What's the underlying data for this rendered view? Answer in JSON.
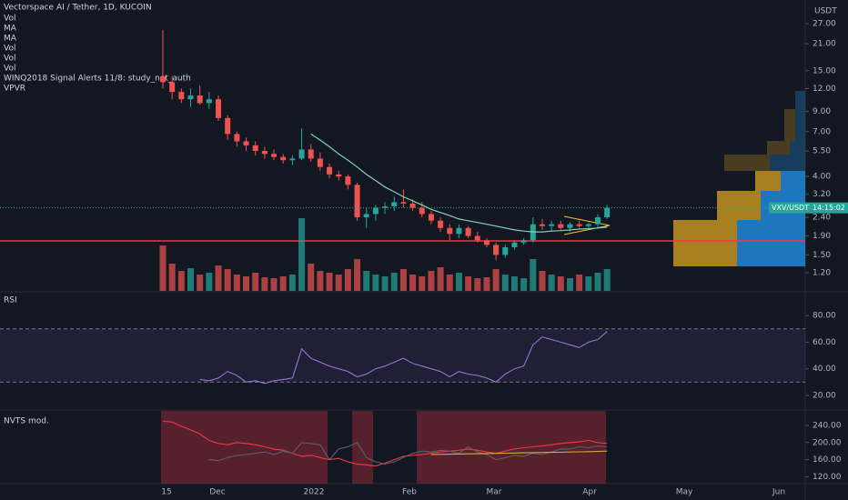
{
  "title": "Vectorspace AI / Tether, 1D, KUCOIN",
  "legend": [
    "Vol",
    "MA",
    "MA",
    "Vol",
    "Vol",
    "Vol",
    "WINQ2018 Signal Alerts 11/8: study_not_auth",
    "VPVR"
  ],
  "unit": "USDT",
  "price_label": {
    "symbol": "VXV/USDT",
    "countdown": "14:15:02"
  },
  "time_axis": [
    "15",
    "Dec",
    "2022",
    "Feb",
    "Mar",
    "Apr",
    "May",
    "Jun"
  ],
  "chart_data": [
    {
      "type": "candlestick",
      "log_scale": true,
      "ylim": [
        0.956,
        36.3
      ],
      "yticks": [
        {
          "value": 27,
          "label": "27.00"
        },
        {
          "value": 21,
          "label": "21.00"
        },
        {
          "value": 15,
          "label": "15.00"
        },
        {
          "value": 12,
          "label": "12.00"
        },
        {
          "value": 9,
          "label": "9.00"
        },
        {
          "value": 7,
          "label": "7.00"
        },
        {
          "value": 5.5,
          "label": "5.50"
        },
        {
          "value": 4,
          "label": "4.00"
        },
        {
          "value": 3.2,
          "label": "3.20"
        },
        {
          "value": 2.4,
          "label": "2.40"
        },
        {
          "value": 1.9,
          "label": "1.90"
        },
        {
          "value": 1.5,
          "label": "1.50"
        },
        {
          "value": 1.2,
          "label": "1.20"
        }
      ],
      "up_color": "#26a69a",
      "down_color": "#ef5350",
      "candles": [
        [
          14,
          25,
          12,
          13
        ],
        [
          13,
          14,
          10.5,
          11.5
        ],
        [
          11.5,
          12,
          10,
          10.5
        ],
        [
          10.5,
          12,
          9.5,
          11
        ],
        [
          11,
          12.5,
          9.8,
          10
        ],
        [
          10,
          11.5,
          9.3,
          10.5
        ],
        [
          10.5,
          11,
          8,
          8.3
        ],
        [
          8.3,
          8.6,
          6.3,
          6.8
        ],
        [
          6.8,
          7,
          5.8,
          6.2
        ],
        [
          6.2,
          6.5,
          5.5,
          5.9
        ],
        [
          5.9,
          6.2,
          5.2,
          5.5
        ],
        [
          5.5,
          5.8,
          5,
          5.3
        ],
        [
          5.3,
          5.6,
          4.9,
          5.1
        ],
        [
          5.1,
          5.3,
          4.7,
          4.9
        ],
        [
          4.9,
          5.2,
          4.6,
          5.0
        ],
        [
          5.0,
          7.3,
          4.9,
          5.6
        ],
        [
          5.6,
          6.0,
          4.8,
          5.0
        ],
        [
          5.0,
          5.4,
          4.3,
          4.5
        ],
        [
          4.5,
          4.7,
          3.9,
          4.1
        ],
        [
          4.1,
          4.3,
          3.8,
          4.0
        ],
        [
          4.0,
          4.1,
          3.4,
          3.6
        ],
        [
          3.6,
          3.7,
          2.3,
          2.4
        ],
        [
          2.4,
          2.7,
          2.1,
          2.5
        ],
        [
          2.5,
          2.8,
          2.3,
          2.7
        ],
        [
          2.7,
          2.9,
          2.5,
          2.75
        ],
        [
          2.75,
          3.1,
          2.6,
          2.9
        ],
        [
          2.9,
          3.4,
          2.7,
          2.85
        ],
        [
          2.85,
          3.0,
          2.6,
          2.7
        ],
        [
          2.7,
          2.9,
          2.4,
          2.5
        ],
        [
          2.5,
          2.6,
          2.2,
          2.3
        ],
        [
          2.3,
          2.4,
          2.0,
          2.1
        ],
        [
          2.1,
          2.2,
          1.8,
          1.95
        ],
        [
          1.95,
          2.2,
          1.85,
          2.1
        ],
        [
          2.1,
          2.15,
          1.85,
          1.9
        ],
        [
          1.9,
          2.0,
          1.75,
          1.8
        ],
        [
          1.8,
          1.85,
          1.65,
          1.7
        ],
        [
          1.7,
          1.75,
          1.4,
          1.5
        ],
        [
          1.5,
          1.7,
          1.45,
          1.65
        ],
        [
          1.65,
          1.8,
          1.6,
          1.75
        ],
        [
          1.75,
          1.85,
          1.7,
          1.8
        ],
        [
          1.8,
          2.4,
          1.75,
          2.2
        ],
        [
          2.2,
          2.35,
          2.05,
          2.15
        ],
        [
          2.15,
          2.3,
          2.0,
          2.2
        ],
        [
          2.2,
          2.3,
          2.05,
          2.1
        ],
        [
          2.1,
          2.25,
          2.0,
          2.2
        ],
        [
          2.2,
          2.3,
          2.1,
          2.15
        ],
        [
          2.15,
          2.25,
          2.05,
          2.2
        ],
        [
          2.2,
          2.5,
          2.1,
          2.4
        ],
        [
          2.4,
          2.8,
          2.35,
          2.7
        ]
      ],
      "ma": {
        "color": "#7ed6b0",
        "values": [
          null,
          null,
          null,
          null,
          null,
          null,
          null,
          null,
          null,
          null,
          null,
          null,
          null,
          null,
          null,
          null,
          6.8,
          6.3,
          5.8,
          5.3,
          4.9,
          4.5,
          4.1,
          3.8,
          3.5,
          3.3,
          3.1,
          2.95,
          2.8,
          2.65,
          2.55,
          2.45,
          2.35,
          2.3,
          2.25,
          2.2,
          2.15,
          2.1,
          2.05,
          2.02,
          2.0,
          2.0,
          2.02,
          2.03,
          2.05,
          2.07,
          2.08,
          2.1,
          2.12
        ]
      },
      "volume": [
        50,
        30,
        22,
        25,
        18,
        20,
        28,
        24,
        18,
        16,
        20,
        15,
        14,
        16,
        18,
        80,
        30,
        22,
        20,
        18,
        24,
        35,
        22,
        18,
        16,
        20,
        24,
        18,
        16,
        22,
        26,
        18,
        20,
        16,
        14,
        15,
        24,
        18,
        16,
        14,
        35,
        22,
        18,
        16,
        14,
        18,
        16,
        20,
        24
      ]
    },
    {
      "type": "line",
      "name": "RSI",
      "ylim": [
        9.7,
        97.2
      ],
      "band": [
        30,
        70
      ],
      "band_color": "#7e57c2",
      "yticks": [
        {
          "value": 80,
          "label": "80.00"
        },
        {
          "value": 60,
          "label": "60.00"
        },
        {
          "value": 40,
          "label": "40.00"
        },
        {
          "value": 20,
          "label": "20.00"
        }
      ],
      "series": [
        {
          "color": "#9575cd",
          "values": [
            null,
            null,
            null,
            null,
            32,
            31,
            33,
            38,
            35,
            30,
            31,
            29,
            31,
            32,
            33,
            55,
            48,
            45,
            42,
            40,
            38,
            34,
            36,
            40,
            42,
            45,
            48,
            44,
            42,
            40,
            38,
            34,
            38,
            36,
            35,
            33,
            30,
            36,
            40,
            42,
            58,
            64,
            62,
            60,
            58,
            56,
            60,
            62,
            68
          ]
        }
      ]
    },
    {
      "type": "line",
      "name": "NVTS mod.",
      "ylim": [
        104,
        274
      ],
      "yticks": [
        {
          "value": 240,
          "label": "240.00"
        },
        {
          "value": 200,
          "label": "200.00"
        },
        {
          "value": 160,
          "label": "160.00"
        },
        {
          "value": 120,
          "label": "120.00"
        }
      ],
      "series": [
        {
          "color": "#f23645",
          "values": [
            250,
            248,
            238,
            230,
            220,
            205,
            198,
            195,
            200,
            198,
            195,
            190,
            185,
            182,
            175,
            168,
            170,
            165,
            160,
            163,
            155,
            150,
            148,
            145,
            152,
            160,
            168,
            170,
            172,
            175,
            178,
            180,
            182,
            185,
            182,
            178,
            175,
            180,
            185,
            188,
            190,
            192,
            195,
            198,
            200,
            202,
            205,
            200,
            198
          ]
        },
        {
          "color": "#5d606b",
          "values": [
            null,
            null,
            null,
            null,
            null,
            160,
            158,
            165,
            170,
            172,
            175,
            178,
            172,
            180,
            175,
            200,
            198,
            195,
            160,
            185,
            190,
            200,
            165,
            155,
            150,
            155,
            165,
            175,
            180,
            178,
            182,
            180,
            175,
            190,
            178,
            172,
            160,
            165,
            170,
            168,
            175,
            172,
            178,
            185,
            185,
            190,
            188,
            192,
            190
          ]
        },
        {
          "color": "#c9b23a",
          "values": [
            null,
            null,
            null,
            null,
            null,
            null,
            null,
            null,
            null,
            null,
            null,
            null,
            null,
            null,
            null,
            null,
            null,
            null,
            null,
            null,
            null,
            null,
            null,
            null,
            null,
            null,
            null,
            null,
            null,
            172,
            172.4,
            172.8,
            173.2,
            173.6,
            174,
            174.4,
            174.8,
            175.2,
            175.6,
            176,
            176.4,
            176.8,
            177.2,
            177.6,
            178,
            178.4,
            178.8,
            179.2,
            180
          ]
        }
      ]
    }
  ]
}
